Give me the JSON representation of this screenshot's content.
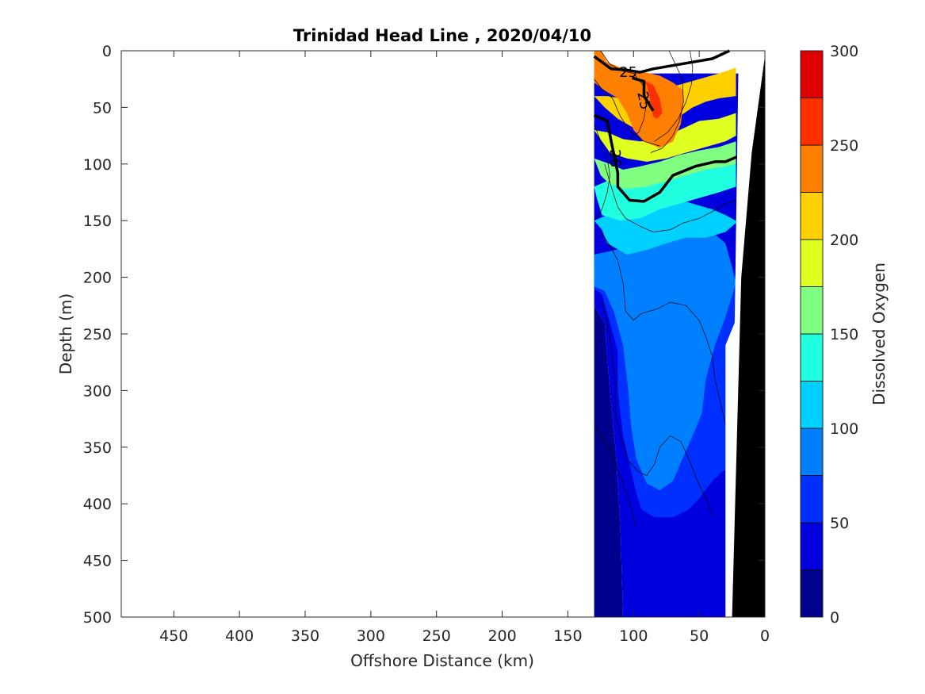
{
  "chart_data": {
    "type": "contour",
    "title": "Trinidad Head Line , 2020/04/10",
    "xlabel": "Offshore Distance (km)",
    "ylabel": "Depth (m)",
    "colorbar_label": "Dissolved Oxygen",
    "xlim": [
      490,
      0
    ],
    "ylim": [
      500,
      0
    ],
    "x_reversed": true,
    "y_reversed": true,
    "x_ticks": [
      450,
      400,
      350,
      300,
      250,
      200,
      150,
      100,
      50,
      0
    ],
    "y_ticks": [
      0,
      50,
      100,
      150,
      200,
      250,
      300,
      350,
      400,
      450,
      500
    ],
    "colorbar_ticks": [
      0,
      50,
      100,
      150,
      200,
      250,
      300
    ],
    "colorbar_levels": [
      0,
      25,
      50,
      75,
      100,
      125,
      150,
      175,
      200,
      225,
      250,
      275,
      300
    ],
    "level_colors": [
      "#00008f",
      "#0000df",
      "#0030ff",
      "#0080ff",
      "#00d0ff",
      "#20ffdf",
      "#80ff80",
      "#dfff20",
      "#ffd000",
      "#ff8000",
      "#ff3000",
      "#df0000"
    ],
    "data_extent_km": [
      130,
      20
    ],
    "density_contours": [
      {
        "label": "25",
        "points": [
          [
            130,
            5
          ],
          [
            117,
            16
          ],
          [
            105,
            17
          ],
          [
            95,
            19
          ],
          [
            85,
            16
          ],
          [
            60,
            11
          ],
          [
            40,
            7
          ],
          [
            27,
            0
          ]
        ]
      },
      {
        "label": "25",
        "points": [
          [
            101,
            24
          ],
          [
            92,
            27
          ],
          [
            92,
            40
          ],
          [
            85,
            53
          ]
        ]
      },
      {
        "label": "26",
        "points": [
          [
            130,
            57
          ],
          [
            120,
            62
          ],
          [
            117,
            80
          ],
          [
            112,
            108
          ],
          [
            112,
            120
          ],
          [
            103,
            132
          ],
          [
            92,
            133
          ],
          [
            80,
            125
          ],
          [
            70,
            110
          ],
          [
            53,
            102
          ],
          [
            38,
            98
          ],
          [
            30,
            98
          ],
          [
            20,
            93
          ]
        ]
      }
    ],
    "contour_labels": [
      {
        "text": "25",
        "x": 104,
        "y": 19,
        "angle": 0
      },
      {
        "text": "25",
        "x": 92,
        "y": 44,
        "angle": 78
      },
      {
        "text": "26",
        "x": 114,
        "y": 95,
        "angle": 88
      }
    ],
    "oxygen_fill": [
      {
        "level": 0,
        "points": [
          [
            130,
            500
          ],
          [
            130,
            500
          ]
        ]
      }
    ],
    "bathymetry_color": "#000000"
  }
}
